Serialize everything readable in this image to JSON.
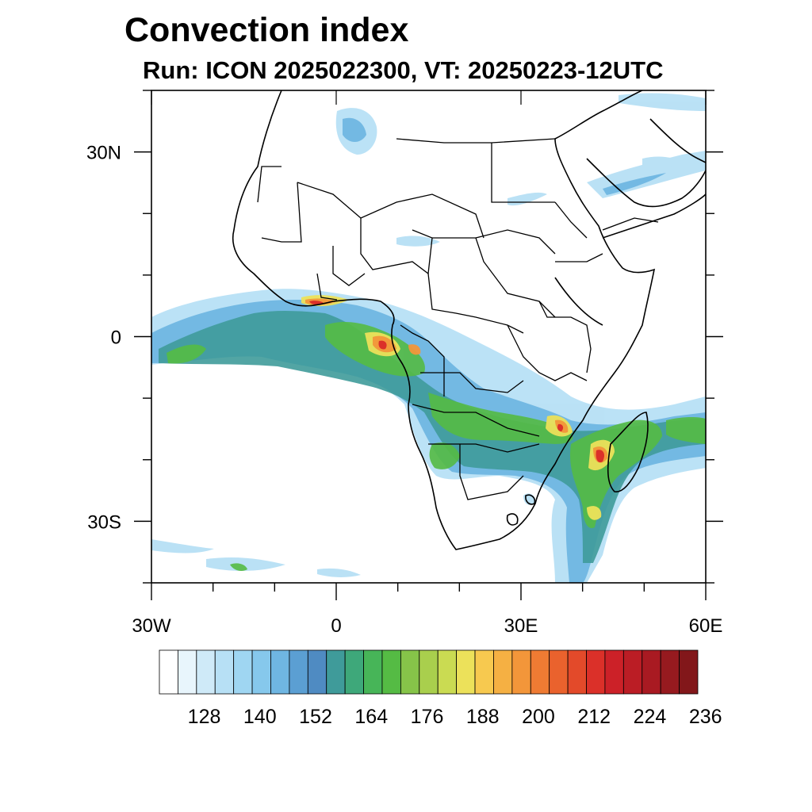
{
  "title": "Convection index",
  "subtitle": "Run: ICON 2025022300,  VT: 20250223-12UTC",
  "map": {
    "extent": {
      "lon_min": -30,
      "lon_max": 60,
      "lat_min": -40,
      "lat_max": 40
    },
    "lat_ticks": [
      {
        "value": 30,
        "label": "30N"
      },
      {
        "value": 0,
        "label": "0"
      },
      {
        "value": -30,
        "label": "30S"
      }
    ],
    "lon_ticks": [
      {
        "value": -30,
        "label": "30W"
      },
      {
        "value": 0,
        "label": "0"
      },
      {
        "value": 30,
        "label": "30E"
      },
      {
        "value": 60,
        "label": "60E"
      }
    ]
  },
  "colorbar": {
    "colors": [
      "#ffffff",
      "#e8f5fc",
      "#cfeaf8",
      "#b7e0f5",
      "#9fd6f2",
      "#86c8ec",
      "#6fb6e2",
      "#5b9fd3",
      "#4f8bc2",
      "#3f9b9a",
      "#3ea87a",
      "#47b558",
      "#55bb44",
      "#86c449",
      "#a9cf4d",
      "#cadb52",
      "#ece15a",
      "#f7c94f",
      "#f5b043",
      "#f3963a",
      "#ef7b33",
      "#ea622d",
      "#e34a2a",
      "#db3029",
      "#cc2128",
      "#bb1d25",
      "#a91a22",
      "#961a1f",
      "#82171a"
    ],
    "labels": [
      "128",
      "140",
      "152",
      "164",
      "176",
      "188",
      "200",
      "212",
      "224",
      "236"
    ],
    "label_bin_index": [
      3,
      6,
      9,
      12,
      15,
      18,
      21,
      24,
      27,
      30
    ]
  },
  "fields": {
    "note_colors": {
      "light": "#b7e0f5",
      "mid": "#6fb6e2",
      "teal": "#3f9b9a",
      "green": "#55bb44",
      "yellow": "#ece15a",
      "orange": "#f3963a",
      "red": "#db3029"
    }
  }
}
